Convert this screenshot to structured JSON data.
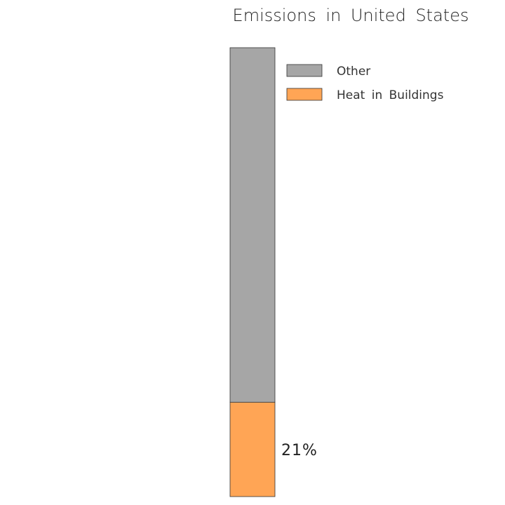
{
  "chart_data": {
    "type": "bar",
    "title": "Emissions in United States",
    "categories": [
      "United States"
    ],
    "stacked": true,
    "ylim": [
      0,
      100
    ],
    "series": [
      {
        "name": "Heat in Buildings",
        "values": [
          21
        ],
        "color": "#FFA555",
        "label": "21%"
      },
      {
        "name": "Other",
        "values": [
          79
        ],
        "color": "#A6A6A6",
        "label": ""
      }
    ],
    "legend": {
      "placement": "top-right",
      "entries": [
        "Other",
        "Heat in Buildings"
      ]
    },
    "xlabel": "",
    "ylabel": "",
    "grid": false
  }
}
